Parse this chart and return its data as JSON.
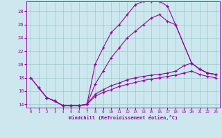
{
  "xlabel": "Windchill (Refroidissement éolien,°C)",
  "bg_color": "#cce8ee",
  "line_color": "#990099",
  "grid_color": "#99cccc",
  "xlim": [
    -0.5,
    23.5
  ],
  "ylim": [
    13.5,
    29.5
  ],
  "xticks": [
    0,
    1,
    2,
    3,
    4,
    5,
    6,
    7,
    8,
    9,
    10,
    11,
    12,
    13,
    14,
    15,
    16,
    17,
    18,
    19,
    20,
    21,
    22,
    23
  ],
  "yticks": [
    14,
    16,
    18,
    20,
    22,
    24,
    26,
    28
  ],
  "curve1_x": [
    0,
    1,
    2,
    3,
    4,
    5,
    6,
    7,
    8,
    9,
    10,
    11,
    12,
    13,
    14,
    15,
    16,
    17,
    18,
    20,
    21,
    22,
    23
  ],
  "curve1_y": [
    18,
    16.5,
    15.0,
    14.5,
    13.8,
    13.8,
    13.8,
    14.0,
    20.0,
    22.5,
    24.8,
    26.0,
    27.5,
    29.0,
    29.5,
    29.5,
    29.5,
    28.8,
    26.0,
    20.2,
    19.3,
    18.7,
    18.5
  ],
  "curve2_x": [
    0,
    1,
    2,
    3,
    4,
    5,
    6,
    7,
    8,
    9,
    10,
    11,
    12,
    13,
    14,
    15,
    16,
    17,
    18,
    20,
    21,
    22,
    23
  ],
  "curve2_y": [
    18,
    16.5,
    15.0,
    14.5,
    13.8,
    13.8,
    13.8,
    14.0,
    17.0,
    19.0,
    21.0,
    22.5,
    24.0,
    25.0,
    26.0,
    27.0,
    27.5,
    26.5,
    26.0,
    20.2,
    19.3,
    18.7,
    18.5
  ],
  "curve3_x": [
    1,
    2,
    3,
    4,
    5,
    6,
    7,
    8,
    9,
    10,
    11,
    12,
    13,
    14,
    15,
    16,
    17,
    18,
    19,
    20,
    21,
    22,
    23
  ],
  "curve3_y": [
    16.5,
    15.0,
    14.5,
    13.8,
    13.8,
    13.8,
    14.0,
    15.5,
    16.2,
    16.8,
    17.2,
    17.7,
    18.0,
    18.2,
    18.4,
    18.5,
    18.7,
    19.0,
    19.8,
    20.2,
    19.3,
    18.7,
    18.5
  ],
  "curve4_x": [
    2,
    3,
    4,
    5,
    6,
    7,
    8,
    9,
    10,
    11,
    12,
    13,
    14,
    15,
    16,
    17,
    18,
    19,
    20,
    21,
    22,
    23
  ],
  "curve4_y": [
    15.0,
    14.5,
    13.8,
    13.8,
    13.8,
    14.0,
    15.2,
    15.8,
    16.2,
    16.7,
    17.0,
    17.3,
    17.6,
    17.8,
    18.0,
    18.2,
    18.4,
    18.7,
    19.0,
    18.5,
    18.2,
    18.0
  ]
}
